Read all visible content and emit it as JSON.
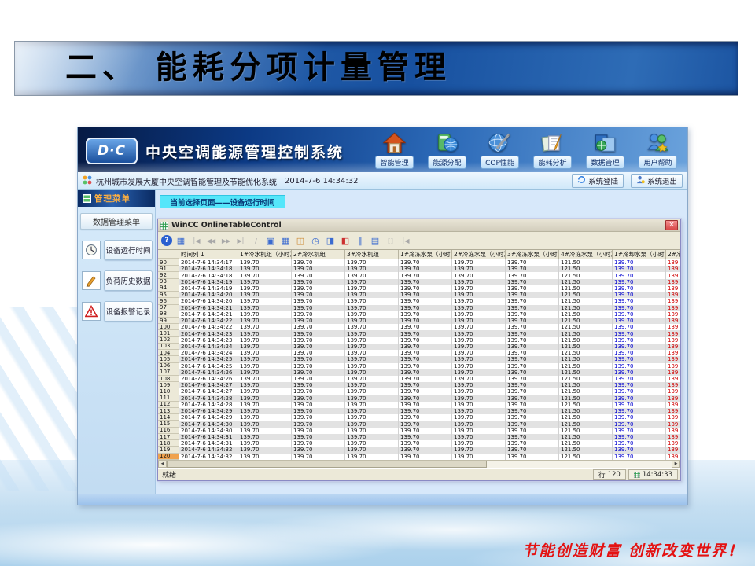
{
  "slide": {
    "title": "二、 能耗分项计量管理",
    "slogan": "节能创造财富 创新改变世界！"
  },
  "app": {
    "logo": "D·C",
    "title": "中央空调能源管理控制系统",
    "nav": [
      {
        "name": "home-icon",
        "label": "智能管理"
      },
      {
        "name": "energy-allocation-icon",
        "label": "能源分配"
      },
      {
        "name": "cop-performance-icon",
        "label": "COP性能"
      },
      {
        "name": "energy-analysis-icon",
        "label": "能耗分析"
      },
      {
        "name": "data-management-icon",
        "label": "数据管理"
      },
      {
        "name": "user-help-icon",
        "label": "用户帮助"
      }
    ],
    "statusbar": {
      "system_name": "杭州城市发展大厦中央空调智能管理及节能优化系统",
      "datetime": "2014-7-6 14:34:32",
      "login": "系统登陆",
      "logout": "系统退出"
    },
    "sidebar": {
      "header": "管理菜单",
      "subheader": "数据管理菜单",
      "items": [
        {
          "icon": "clock-icon",
          "label": "设备运行时间"
        },
        {
          "icon": "pen-icon",
          "label": "负荷历史数据"
        },
        {
          "icon": "alarm-triangle-icon",
          "label": "设备报警记录"
        }
      ]
    },
    "banner": "当前选择页面——设备运行时间"
  },
  "wincc": {
    "title": "WinCC OnlineTableControl",
    "toolbar": [
      {
        "name": "help-button",
        "glyph": "?",
        "style": "help"
      },
      {
        "name": "time-column-select-button",
        "glyph": "▦",
        "style": "blue"
      },
      {
        "name": "first-record-button",
        "glyph": "│◀",
        "style": "disabled"
      },
      {
        "name": "prev-record-button",
        "glyph": "◀◀",
        "style": "disabled"
      },
      {
        "name": "next-record-button",
        "glyph": "▶▶",
        "style": "disabled"
      },
      {
        "name": "last-record-button",
        "glyph": "▶│",
        "style": "disabled"
      },
      {
        "name": "edit-button",
        "glyph": "∕",
        "style": "disabled"
      },
      {
        "name": "copy-button",
        "glyph": "▣",
        "style": "blue"
      },
      {
        "name": "select-columns-button",
        "glyph": "▦",
        "style": "blue"
      },
      {
        "name": "select-archive-button",
        "glyph": "◫",
        "style": "orange"
      },
      {
        "name": "time-range-button",
        "glyph": "◷",
        "style": "blue"
      },
      {
        "name": "export-data-button",
        "glyph": "◨",
        "style": "blue"
      },
      {
        "name": "import-data-button",
        "glyph": "◧",
        "style": "red"
      },
      {
        "name": "pause-button",
        "glyph": "∥",
        "style": "blue"
      },
      {
        "name": "print-button",
        "glyph": "▤",
        "style": "blue"
      },
      {
        "name": "timeframe-button",
        "glyph": "[ ]",
        "style": "disabled"
      },
      {
        "name": "goto-end-button",
        "glyph": "│◀",
        "style": "disabled"
      }
    ],
    "status": {
      "ready": "就绪",
      "row_label": "行",
      "row_value": "120",
      "time": "14:34:33"
    }
  },
  "chart_data": {
    "type": "table",
    "headers": [
      "时间列 1",
      "1#冷水机组（小时）",
      "2#冷水机组",
      "3#冷水机组",
      "1#冷冻水泵（小时）",
      "2#冷冻水泵（小时）",
      "3#冷冻水泵（小时）",
      "4#冷冻水泵（小时）",
      "1#冷却水泵（小时）",
      "2#冷却水泵（小时）"
    ],
    "row_values": [
      "139.70",
      "139.70",
      "139.70",
      "139.70",
      "139.70",
      "139.70",
      "121.50",
      "139.70",
      "139.70"
    ],
    "value_colors": [
      null,
      null,
      null,
      null,
      null,
      null,
      null,
      "#0000d0",
      "#d00000"
    ],
    "rows": [
      [
        "90",
        "2014-7-6 14:34:17"
      ],
      [
        "91",
        "2014-7-6 14:34:18"
      ],
      [
        "92",
        "2014-7-6 14:34:18"
      ],
      [
        "93",
        "2014-7-6 14:34:19"
      ],
      [
        "94",
        "2014-7-6 14:34:19"
      ],
      [
        "95",
        "2014-7-6 14:34:20"
      ],
      [
        "96",
        "2014-7-6 14:34:20"
      ],
      [
        "97",
        "2014-7-6 14:34:21"
      ],
      [
        "98",
        "2014-7-6 14:34:21"
      ],
      [
        "99",
        "2014-7-6 14:34:22"
      ],
      [
        "100",
        "2014-7-6 14:34:22"
      ],
      [
        "101",
        "2014-7-6 14:34:23"
      ],
      [
        "102",
        "2014-7-6 14:34:23"
      ],
      [
        "103",
        "2014-7-6 14:34:24"
      ],
      [
        "104",
        "2014-7-6 14:34:24"
      ],
      [
        "105",
        "2014-7-6 14:34:25"
      ],
      [
        "106",
        "2014-7-6 14:34:25"
      ],
      [
        "107",
        "2014-7-6 14:34:26"
      ],
      [
        "108",
        "2014-7-6 14:34:26"
      ],
      [
        "109",
        "2014-7-6 14:34:27"
      ],
      [
        "110",
        "2014-7-6 14:34:27"
      ],
      [
        "111",
        "2014-7-6 14:34:28"
      ],
      [
        "112",
        "2014-7-6 14:34:28"
      ],
      [
        "113",
        "2014-7-6 14:34:29"
      ],
      [
        "114",
        "2014-7-6 14:34:29"
      ],
      [
        "115",
        "2014-7-6 14:34:30"
      ],
      [
        "116",
        "2014-7-6 14:34:30"
      ],
      [
        "117",
        "2014-7-6 14:34:31"
      ],
      [
        "118",
        "2014-7-6 14:34:31"
      ],
      [
        "119",
        "2014-7-6 14:34:32"
      ],
      [
        "120",
        "2014-7-6 14:34:32"
      ]
    ]
  },
  "colors": {
    "banner_bg": "#55e6fa",
    "current_row_bg": "#f0a24e",
    "header_navy": "#0c3a85",
    "slogan_red": "#e41212"
  }
}
